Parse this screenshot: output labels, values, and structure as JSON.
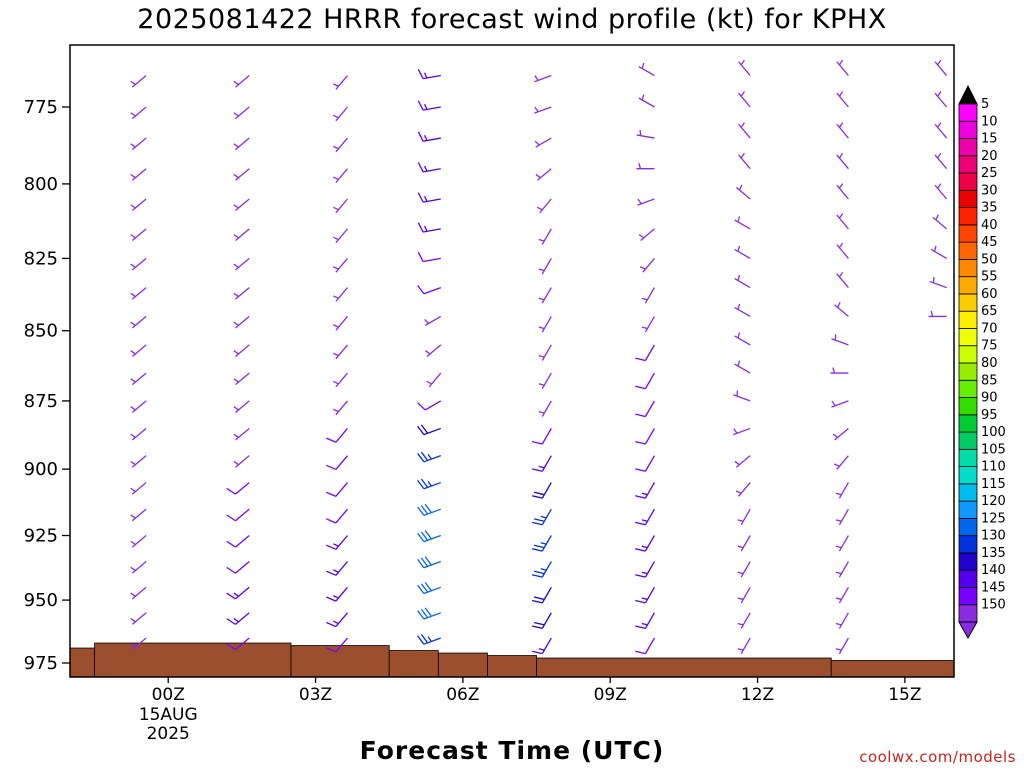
{
  "chart_data": {
    "type": "wind_barb_time_height",
    "title": "2025081422 HRRR forecast wind profile (kt) for KPHX",
    "xlabel": "Forecast Time (UTC)",
    "credit": "coolwx.com/models",
    "y_axis": {
      "units": "hPa",
      "inverted": true,
      "ylim": [
        975,
        755
      ],
      "ticks": [
        "775",
        "800",
        "825",
        "850",
        "875",
        "900",
        "925",
        "950",
        "975"
      ]
    },
    "x_axis": {
      "xlim_hours_from_00Z": [
        -2,
        16
      ],
      "ticks": [
        {
          "hour": 0,
          "label": "00Z",
          "sub": [
            "15AUG",
            "2025"
          ]
        },
        {
          "hour": 3,
          "label": "03Z",
          "sub": []
        },
        {
          "hour": 6,
          "label": "06Z",
          "sub": []
        },
        {
          "hour": 9,
          "label": "09Z",
          "sub": []
        },
        {
          "hour": 12,
          "label": "12Z",
          "sub": []
        },
        {
          "hour": 15,
          "label": "15Z",
          "sub": []
        }
      ]
    },
    "colorbar": {
      "labels": [
        "5",
        "10",
        "15",
        "20",
        "25",
        "30",
        "35",
        "40",
        "45",
        "50",
        "55",
        "60",
        "65",
        "70",
        "75",
        "80",
        "85",
        "90",
        "95",
        "100",
        "105",
        "110",
        "115",
        "120",
        "125",
        "130",
        "135",
        "140",
        "145",
        "150"
      ],
      "colors": [
        "#8a2be2",
        "#7700ff",
        "#5500ee",
        "#2200cc",
        "#0033dd",
        "#0066ee",
        "#1199ff",
        "#00bbee",
        "#00ddcc",
        "#00ddaa",
        "#00cc66",
        "#00cc33",
        "#33dd00",
        "#66ee00",
        "#99ee00",
        "#ccff00",
        "#eeff00",
        "#ffee00",
        "#ffcc00",
        "#ffaa00",
        "#ff8800",
        "#ff6600",
        "#ff4400",
        "#ff2200",
        "#ee0000",
        "#ee0044",
        "#ee0077",
        "#ee00aa",
        "#ee00dd",
        "#ff00ff"
      ]
    },
    "terrain": {
      "color": "#9b4f2e",
      "surface_pressure": [
        {
          "hour": -2.0,
          "p": 969
        },
        {
          "hour": -1.5,
          "p": 967
        },
        {
          "hour": 2.5,
          "p": 968
        },
        {
          "hour": 4.5,
          "p": 970
        },
        {
          "hour": 5.5,
          "p": 971
        },
        {
          "hour": 6.5,
          "p": 972
        },
        {
          "hour": 7.5,
          "p": 973
        },
        {
          "hour": 13.5,
          "p": 974
        },
        {
          "hour": 16.0,
          "p": 974
        }
      ]
    },
    "barb_columns": [
      {
        "hour": -0.45,
        "levels": [
          765,
          775,
          785,
          795,
          805,
          815,
          825,
          835,
          845,
          855,
          865,
          875,
          885,
          895,
          905,
          915,
          925,
          935,
          945,
          955,
          965
        ],
        "speed_kt": [
          5,
          5,
          5,
          5,
          5,
          5,
          5,
          5,
          5,
          5,
          5,
          5,
          5,
          5,
          5,
          5,
          5,
          5,
          5,
          5,
          5
        ],
        "dir_deg": [
          230,
          230,
          230,
          230,
          230,
          230,
          230,
          230,
          230,
          230,
          230,
          230,
          230,
          230,
          230,
          230,
          230,
          230,
          230,
          230,
          230
        ]
      },
      {
        "hour": 1.65,
        "levels": [
          765,
          775,
          785,
          795,
          805,
          815,
          825,
          835,
          845,
          855,
          865,
          875,
          885,
          895,
          905,
          915,
          925,
          935,
          945,
          955,
          965
        ],
        "speed_kt": [
          5,
          5,
          5,
          5,
          5,
          5,
          5,
          5,
          5,
          5,
          5,
          5,
          5,
          5,
          10,
          10,
          10,
          10,
          15,
          15,
          10
        ],
        "dir_deg": [
          230,
          230,
          230,
          230,
          230,
          230,
          230,
          230,
          230,
          230,
          230,
          230,
          230,
          230,
          230,
          230,
          230,
          230,
          230,
          230,
          230
        ]
      },
      {
        "hour": 3.65,
        "levels": [
          765,
          775,
          785,
          795,
          805,
          815,
          825,
          835,
          845,
          855,
          865,
          875,
          885,
          895,
          905,
          915,
          925,
          935,
          945,
          955,
          965
        ],
        "speed_kt": [
          5,
          5,
          5,
          5,
          5,
          5,
          5,
          5,
          5,
          5,
          5,
          5,
          10,
          10,
          10,
          10,
          15,
          15,
          15,
          15,
          10
        ],
        "dir_deg": [
          220,
          220,
          220,
          220,
          220,
          220,
          220,
          220,
          220,
          220,
          220,
          220,
          220,
          220,
          220,
          220,
          220,
          220,
          220,
          220,
          220
        ]
      },
      {
        "hour": 5.55,
        "levels": [
          765,
          775,
          785,
          795,
          805,
          815,
          825,
          835,
          845,
          855,
          865,
          875,
          885,
          895,
          905,
          915,
          925,
          935,
          945,
          955,
          965
        ],
        "speed_kt": [
          15,
          15,
          15,
          15,
          15,
          15,
          10,
          10,
          5,
          5,
          5,
          10,
          20,
          25,
          25,
          30,
          30,
          30,
          30,
          30,
          25
        ],
        "dir_deg": [
          260,
          260,
          260,
          260,
          260,
          260,
          260,
          250,
          240,
          230,
          220,
          240,
          250,
          250,
          250,
          250,
          250,
          250,
          250,
          250,
          250
        ]
      },
      {
        "hour": 7.8,
        "levels": [
          765,
          775,
          785,
          795,
          805,
          815,
          825,
          835,
          845,
          855,
          865,
          875,
          885,
          895,
          905,
          915,
          925,
          935,
          945,
          955,
          965
        ],
        "speed_kt": [
          5,
          5,
          5,
          5,
          5,
          5,
          5,
          5,
          5,
          5,
          5,
          5,
          10,
          15,
          20,
          25,
          25,
          25,
          20,
          20,
          15
        ],
        "dir_deg": [
          250,
          250,
          240,
          230,
          220,
          210,
          210,
          210,
          210,
          210,
          210,
          210,
          210,
          210,
          210,
          210,
          210,
          210,
          210,
          210,
          210
        ]
      },
      {
        "hour": 9.9,
        "levels": [
          765,
          775,
          785,
          795,
          805,
          815,
          825,
          835,
          845,
          855,
          865,
          875,
          885,
          895,
          905,
          915,
          925,
          935,
          945,
          955,
          965
        ],
        "speed_kt": [
          5,
          5,
          5,
          5,
          5,
          5,
          5,
          5,
          5,
          10,
          10,
          10,
          10,
          10,
          15,
          15,
          15,
          15,
          15,
          15,
          10
        ],
        "dir_deg": [
          300,
          300,
          280,
          270,
          250,
          230,
          220,
          210,
          210,
          210,
          210,
          210,
          210,
          210,
          210,
          210,
          210,
          210,
          210,
          210,
          210
        ]
      },
      {
        "hour": 11.85,
        "levels": [
          765,
          775,
          785,
          795,
          805,
          815,
          825,
          835,
          845,
          855,
          865,
          875,
          885,
          895,
          905,
          915,
          925,
          935,
          945,
          955,
          965
        ],
        "speed_kt": [
          5,
          5,
          5,
          5,
          5,
          5,
          5,
          5,
          5,
          5,
          5,
          5,
          5,
          5,
          5,
          5,
          5,
          5,
          5,
          5,
          5
        ],
        "dir_deg": [
          320,
          320,
          320,
          320,
          310,
          300,
          300,
          300,
          300,
          300,
          300,
          290,
          250,
          230,
          220,
          210,
          210,
          210,
          210,
          210,
          210
        ]
      },
      {
        "hour": 13.85,
        "levels": [
          765,
          775,
          785,
          795,
          805,
          815,
          825,
          835,
          845,
          855,
          865,
          875,
          885,
          895,
          905,
          915,
          925,
          935,
          945,
          955,
          965
        ],
        "speed_kt": [
          5,
          5,
          5,
          5,
          5,
          5,
          5,
          5,
          5,
          5,
          5,
          5,
          5,
          5,
          5,
          5,
          5,
          5,
          5,
          5,
          5
        ],
        "dir_deg": [
          320,
          320,
          320,
          320,
          320,
          320,
          320,
          320,
          310,
          290,
          270,
          250,
          230,
          220,
          210,
          210,
          210,
          210,
          210,
          210,
          210
        ]
      },
      {
        "hour": 15.85,
        "levels": [
          765,
          775,
          785,
          795,
          805,
          815,
          825,
          835,
          845
        ],
        "speed_kt": [
          5,
          5,
          5,
          5,
          5,
          5,
          5,
          5,
          5
        ],
        "dir_deg": [
          320,
          320,
          320,
          320,
          320,
          310,
          300,
          290,
          270
        ]
      }
    ]
  }
}
